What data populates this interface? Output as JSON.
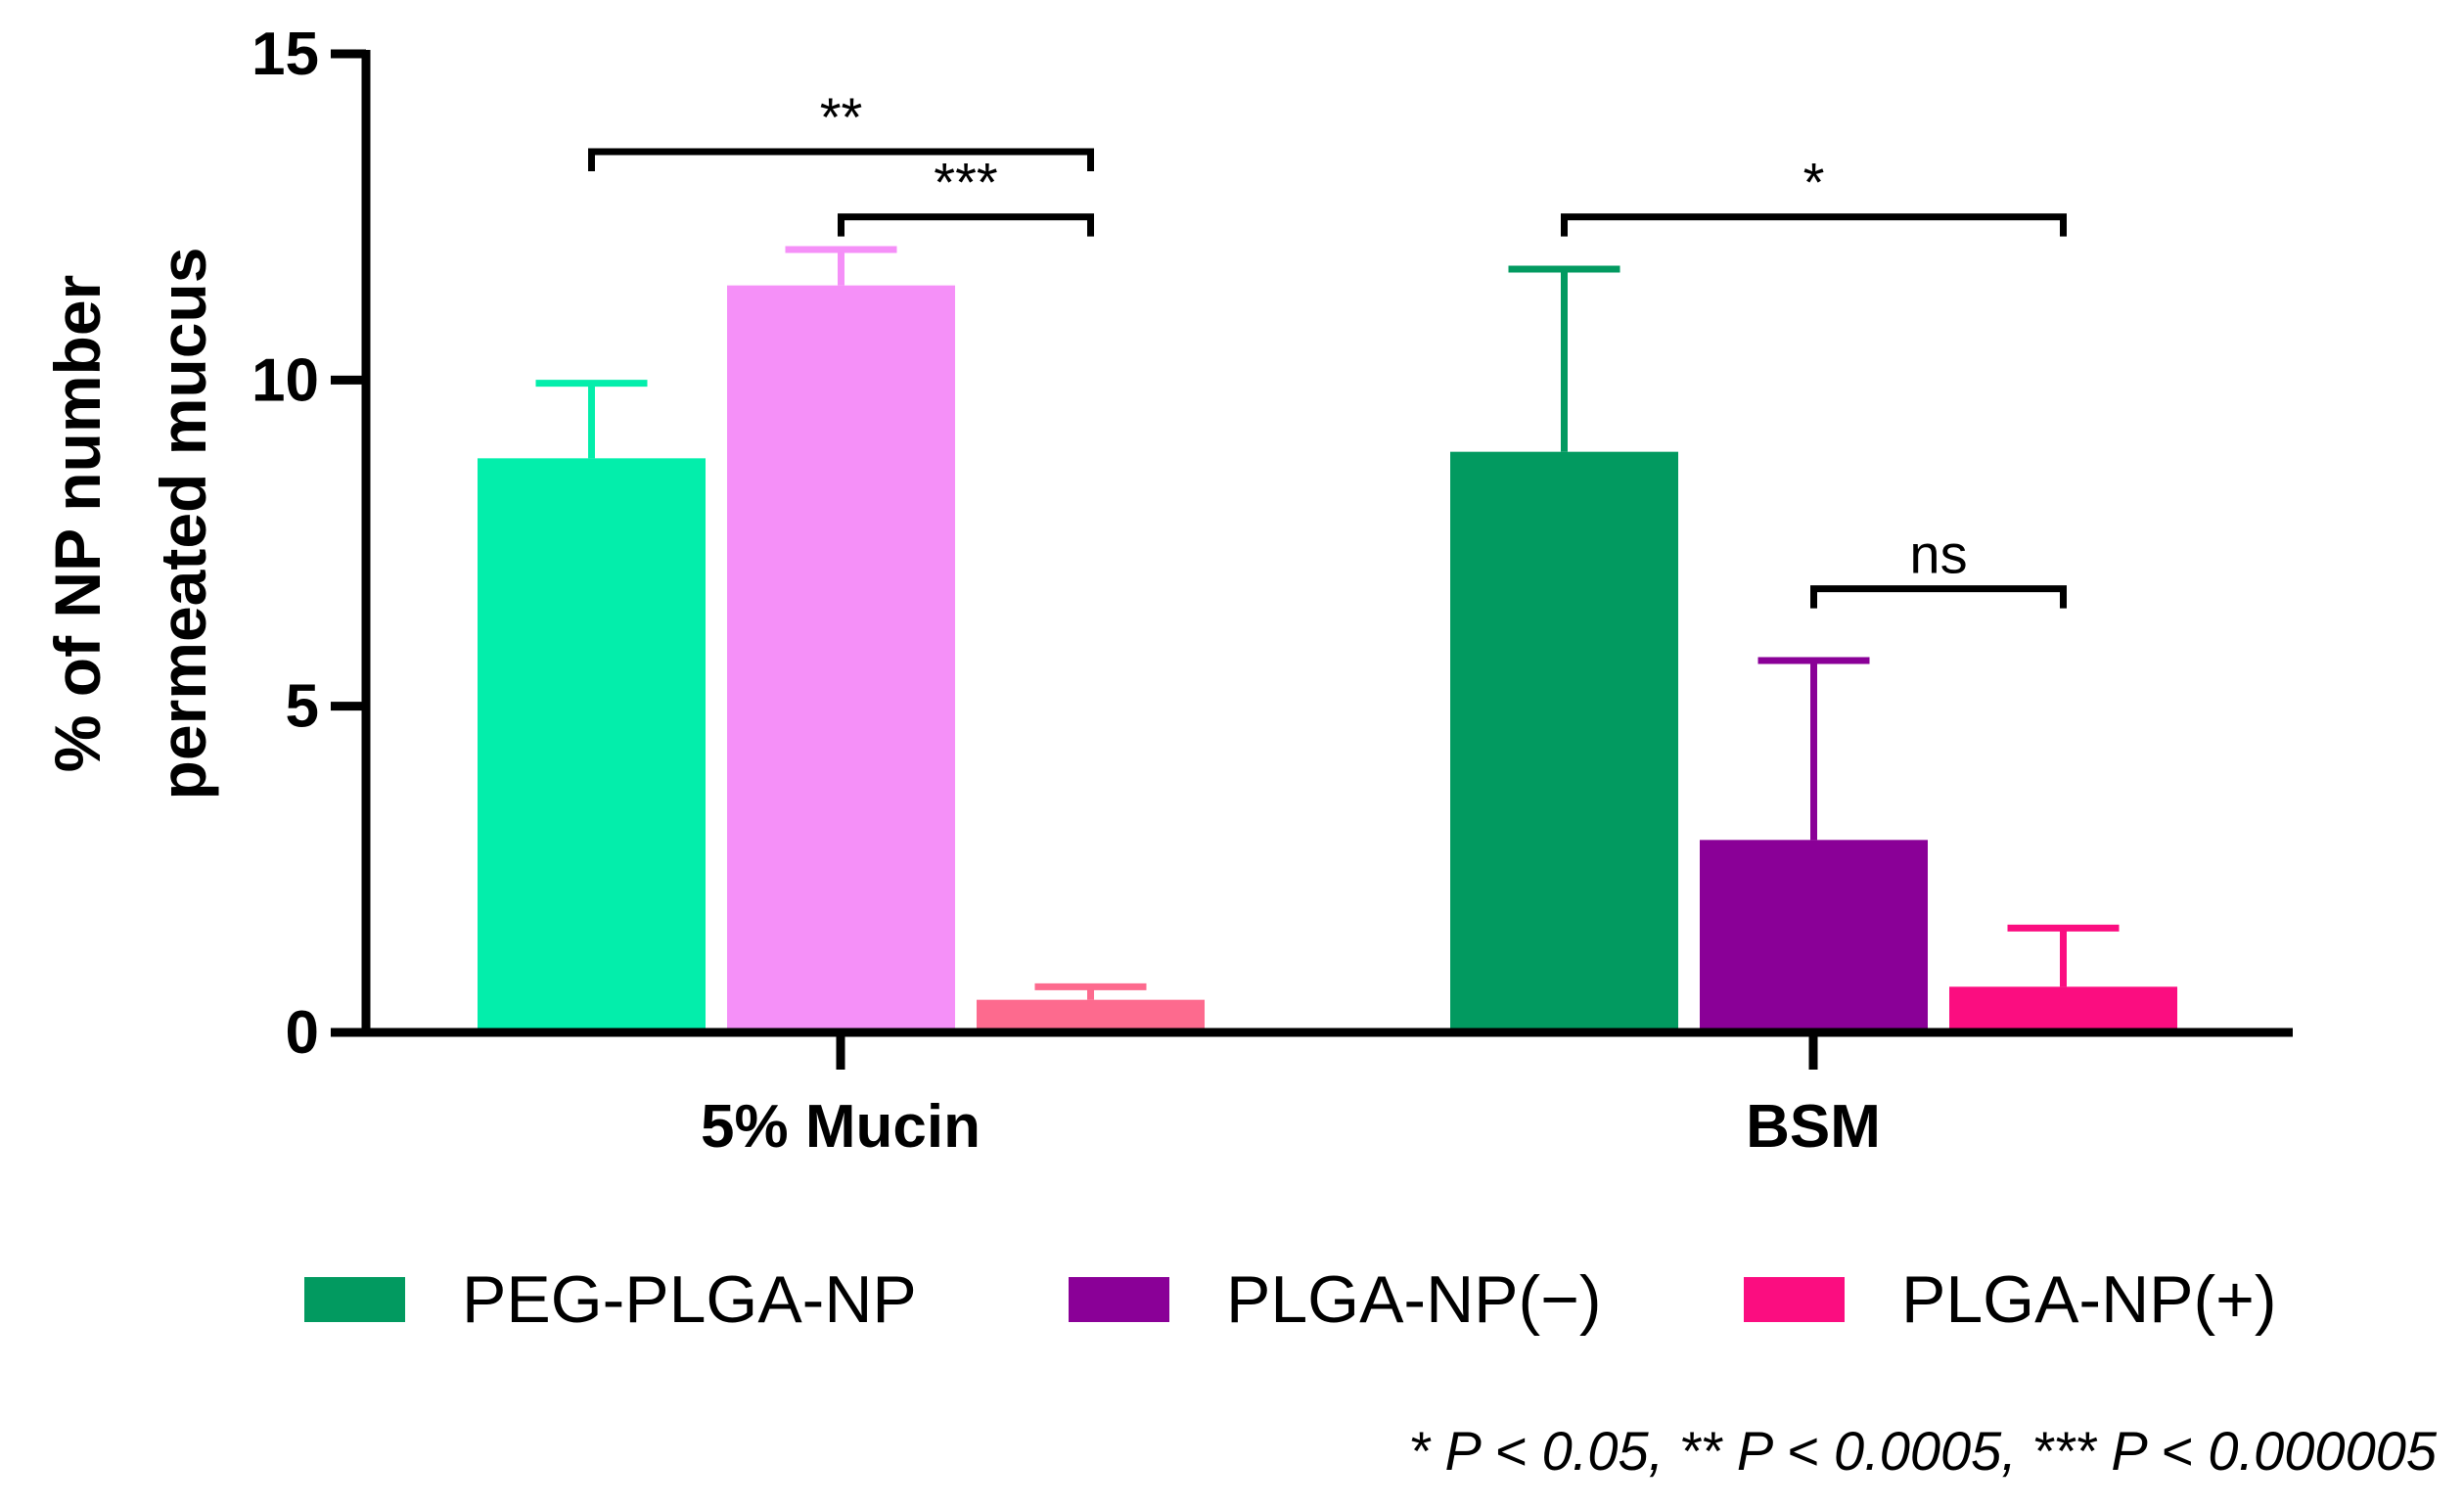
{
  "chart_data": {
    "type": "bar",
    "title": "",
    "xlabel": "",
    "ylabel_lines": [
      "% of NP number",
      "permeated mucus"
    ],
    "ylim": [
      0,
      15
    ],
    "yticks": [
      0,
      5,
      10,
      15
    ],
    "ytick_labels": [
      "0",
      "5",
      "10",
      "15"
    ],
    "categories": [
      "5% Mucin",
      "BSM"
    ],
    "legend": [
      {
        "name": "PEG-PLGA-NP",
        "color": "#029a60"
      },
      {
        "name": "PLGA-NP(−)",
        "color": "#8a0097"
      },
      {
        "name": "PLGA-NP(+)",
        "color": "#fb0d80"
      }
    ],
    "bars": [
      {
        "category": "5% Mucin",
        "series": "PEG-PLGA-NP",
        "value": 8.8,
        "error": 1.15,
        "color": "#03eeab"
      },
      {
        "category": "5% Mucin",
        "series": "PLGA-NP(−)",
        "value": 11.45,
        "error": 0.55,
        "color": "#f590f8"
      },
      {
        "category": "5% Mucin",
        "series": "PLGA-NP(+)",
        "value": 0.5,
        "error": 0.2,
        "color": "#fd6a8e"
      },
      {
        "category": "BSM",
        "series": "PEG-PLGA-NP",
        "value": 8.9,
        "error": 2.8,
        "color": "#029a60"
      },
      {
        "category": "BSM",
        "series": "PLGA-NP(−)",
        "value": 2.95,
        "error": 2.75,
        "color": "#8a0097"
      },
      {
        "category": "BSM",
        "series": "PLGA-NP(+)",
        "value": 0.7,
        "error": 0.9,
        "color": "#fb0d80"
      }
    ],
    "significance": [
      {
        "from_bar": 0,
        "to_bar": 2,
        "level": 13.5,
        "label": "**"
      },
      {
        "from_bar": 1,
        "to_bar": 2,
        "level": 12.5,
        "label": "***"
      },
      {
        "from_bar": 3,
        "to_bar": 5,
        "level": 12.5,
        "label": "*"
      },
      {
        "from_bar": 4,
        "to_bar": 5,
        "level": 6.8,
        "label": "ns"
      }
    ],
    "footnote": "* P < 0.05, ** P < 0.0005, *** P < 0.000005"
  }
}
